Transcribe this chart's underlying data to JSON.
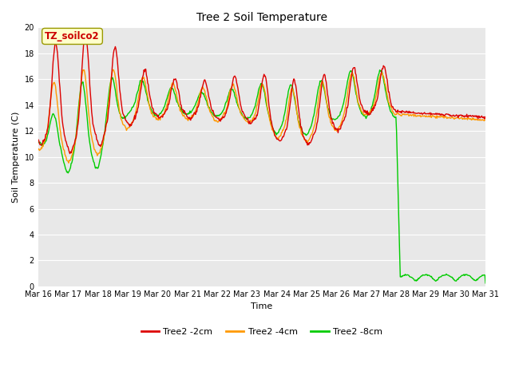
{
  "title": "Tree 2 Soil Temperature",
  "xlabel": "Time",
  "ylabel": "Soil Temperature (C)",
  "ylim": [
    0,
    20
  ],
  "annotation": "TZ_soilco2",
  "annotation_color": "#cc0000",
  "annotation_bg": "#ffffcc",
  "annotation_edge": "#999900",
  "bg_color": "#e8e8e8",
  "grid_color": "#ffffff",
  "xtick_labels": [
    "Mar 16",
    "Mar 17",
    "Mar 18",
    "Mar 19",
    "Mar 20",
    "Mar 21",
    "Mar 22",
    "Mar 23",
    "Mar 24",
    "Mar 25",
    "Mar 26",
    "Mar 27",
    "Mar 28",
    "Mar 29",
    "Mar 30",
    "Mar 31"
  ],
  "series_colors": [
    "#dd0000",
    "#ff9900",
    "#00cc00"
  ],
  "series_labels": [
    "Tree2 -2cm",
    "Tree2 -4cm",
    "Tree2 -8cm"
  ],
  "linewidth": 1.0,
  "title_fontsize": 10,
  "label_fontsize": 8,
  "tick_fontsize": 7,
  "legend_fontsize": 8
}
